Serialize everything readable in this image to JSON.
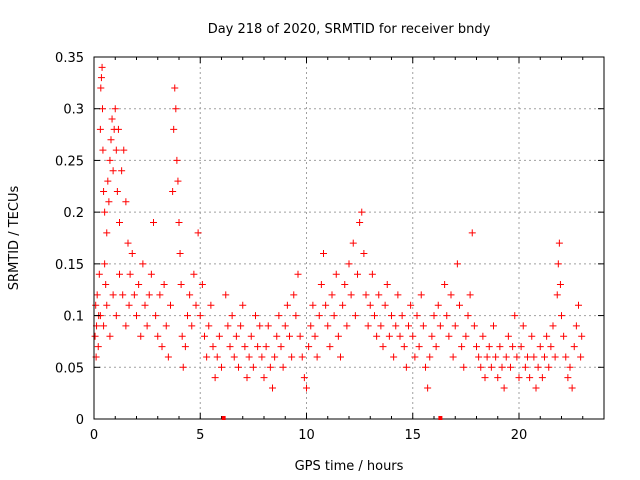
{
  "chart_data": {
    "type": "scatter",
    "title": "Day 218 of 2020, SRMTID for receiver bndy",
    "xlabel": "GPS time / hours",
    "ylabel": "SRMTID / TECUs",
    "xlim": [
      0,
      24
    ],
    "ylim": [
      0,
      0.35
    ],
    "xticks": [
      0,
      5,
      10,
      15,
      20
    ],
    "xtick_labels": [
      "0",
      "5",
      "10",
      "15",
      "20"
    ],
    "yticks": [
      0,
      0.05,
      0.1,
      0.15,
      0.2,
      0.25,
      0.3,
      0.35
    ],
    "ytick_labels": [
      "0",
      "0.05",
      "0.1",
      "0.15",
      "0.2",
      "0.25",
      "0.3",
      "0.35"
    ],
    "grid": true,
    "marker": "+",
    "color": "#ff0000",
    "baseline_markers": [
      6.1,
      16.3
    ],
    "series": [
      {
        "name": "SRMTID",
        "points": [
          [
            0.05,
            0.08
          ],
          [
            0.08,
            0.11
          ],
          [
            0.1,
            0.06
          ],
          [
            0.12,
            0.09
          ],
          [
            0.15,
            0.12
          ],
          [
            0.2,
            0.07
          ],
          [
            0.22,
            0.1
          ],
          [
            0.25,
            0.14
          ],
          [
            0.3,
            0.28
          ],
          [
            0.32,
            0.32
          ],
          [
            0.35,
            0.33
          ],
          [
            0.38,
            0.34
          ],
          [
            0.4,
            0.3
          ],
          [
            0.42,
            0.26
          ],
          [
            0.45,
            0.22
          ],
          [
            0.5,
            0.2
          ],
          [
            0.5,
            0.15
          ],
          [
            0.55,
            0.13
          ],
          [
            0.6,
            0.18
          ],
          [
            0.65,
            0.23
          ],
          [
            0.7,
            0.21
          ],
          [
            0.75,
            0.25
          ],
          [
            0.8,
            0.27
          ],
          [
            0.85,
            0.29
          ],
          [
            0.9,
            0.24
          ],
          [
            0.95,
            0.28
          ],
          [
            1.0,
            0.3
          ],
          [
            1.05,
            0.26
          ],
          [
            1.1,
            0.22
          ],
          [
            1.15,
            0.28
          ],
          [
            1.2,
            0.19
          ],
          [
            1.3,
            0.24
          ],
          [
            1.4,
            0.26
          ],
          [
            1.5,
            0.21
          ],
          [
            1.6,
            0.17
          ],
          [
            1.7,
            0.14
          ],
          [
            0.3,
            0.1
          ],
          [
            0.45,
            0.09
          ],
          [
            0.6,
            0.11
          ],
          [
            0.75,
            0.08
          ],
          [
            0.9,
            0.12
          ],
          [
            1.05,
            0.1
          ],
          [
            1.2,
            0.14
          ],
          [
            1.35,
            0.12
          ],
          [
            1.5,
            0.09
          ],
          [
            1.65,
            0.11
          ],
          [
            1.8,
            0.16
          ],
          [
            1.9,
            0.12
          ],
          [
            2.0,
            0.1
          ],
          [
            2.1,
            0.13
          ],
          [
            2.2,
            0.08
          ],
          [
            2.3,
            0.15
          ],
          [
            2.4,
            0.11
          ],
          [
            2.5,
            0.09
          ],
          [
            2.6,
            0.12
          ],
          [
            2.7,
            0.14
          ],
          [
            2.8,
            0.19
          ],
          [
            2.9,
            0.1
          ],
          [
            3.0,
            0.08
          ],
          [
            3.1,
            0.12
          ],
          [
            3.2,
            0.07
          ],
          [
            3.3,
            0.13
          ],
          [
            3.4,
            0.09
          ],
          [
            3.5,
            0.06
          ],
          [
            3.6,
            0.11
          ],
          [
            3.7,
            0.22
          ],
          [
            3.75,
            0.28
          ],
          [
            3.8,
            0.32
          ],
          [
            3.85,
            0.3
          ],
          [
            3.9,
            0.25
          ],
          [
            3.95,
            0.23
          ],
          [
            4.0,
            0.19
          ],
          [
            4.05,
            0.16
          ],
          [
            4.1,
            0.13
          ],
          [
            4.15,
            0.08
          ],
          [
            4.2,
            0.05
          ],
          [
            4.3,
            0.07
          ],
          [
            4.4,
            0.1
          ],
          [
            4.5,
            0.12
          ],
          [
            4.6,
            0.09
          ],
          [
            4.7,
            0.14
          ],
          [
            4.8,
            0.11
          ],
          [
            4.9,
            0.18
          ],
          [
            5.0,
            0.1
          ],
          [
            5.1,
            0.13
          ],
          [
            5.2,
            0.08
          ],
          [
            5.3,
            0.06
          ],
          [
            5.4,
            0.09
          ],
          [
            5.5,
            0.11
          ],
          [
            5.6,
            0.07
          ],
          [
            5.7,
            0.04
          ],
          [
            5.8,
            0.06
          ],
          [
            5.9,
            0.08
          ],
          [
            6.0,
            0.05
          ],
          [
            6.2,
            0.12
          ],
          [
            6.3,
            0.09
          ],
          [
            6.4,
            0.07
          ],
          [
            6.5,
            0.1
          ],
          [
            6.6,
            0.06
          ],
          [
            6.7,
            0.08
          ],
          [
            6.8,
            0.05
          ],
          [
            6.9,
            0.09
          ],
          [
            7.0,
            0.11
          ],
          [
            7.1,
            0.07
          ],
          [
            7.2,
            0.04
          ],
          [
            7.3,
            0.06
          ],
          [
            7.4,
            0.08
          ],
          [
            7.5,
            0.05
          ],
          [
            7.6,
            0.1
          ],
          [
            7.7,
            0.07
          ],
          [
            7.8,
            0.09
          ],
          [
            7.9,
            0.06
          ],
          [
            8.0,
            0.04
          ],
          [
            8.1,
            0.07
          ],
          [
            8.2,
            0.09
          ],
          [
            8.3,
            0.05
          ],
          [
            8.4,
            0.03
          ],
          [
            8.5,
            0.06
          ],
          [
            8.6,
            0.08
          ],
          [
            8.7,
            0.1
          ],
          [
            8.8,
            0.07
          ],
          [
            8.9,
            0.05
          ],
          [
            9.0,
            0.09
          ],
          [
            9.1,
            0.11
          ],
          [
            9.2,
            0.08
          ],
          [
            9.3,
            0.06
          ],
          [
            9.4,
            0.12
          ],
          [
            9.5,
            0.1
          ],
          [
            9.6,
            0.14
          ],
          [
            9.7,
            0.08
          ],
          [
            9.8,
            0.06
          ],
          [
            9.9,
            0.04
          ],
          [
            10.0,
            0.03
          ],
          [
            10.1,
            0.07
          ],
          [
            10.2,
            0.09
          ],
          [
            10.3,
            0.11
          ],
          [
            10.4,
            0.08
          ],
          [
            10.5,
            0.06
          ],
          [
            10.6,
            0.1
          ],
          [
            10.7,
            0.13
          ],
          [
            10.8,
            0.16
          ],
          [
            10.9,
            0.11
          ],
          [
            11.0,
            0.09
          ],
          [
            11.1,
            0.07
          ],
          [
            11.2,
            0.12
          ],
          [
            11.3,
            0.1
          ],
          [
            11.4,
            0.14
          ],
          [
            11.5,
            0.08
          ],
          [
            11.6,
            0.06
          ],
          [
            11.7,
            0.11
          ],
          [
            11.8,
            0.13
          ],
          [
            11.9,
            0.09
          ],
          [
            12.0,
            0.15
          ],
          [
            12.1,
            0.12
          ],
          [
            12.2,
            0.17
          ],
          [
            12.3,
            0.1
          ],
          [
            12.4,
            0.14
          ],
          [
            12.5,
            0.19
          ],
          [
            12.6,
            0.2
          ],
          [
            12.7,
            0.16
          ],
          [
            12.8,
            0.12
          ],
          [
            12.9,
            0.09
          ],
          [
            13.0,
            0.11
          ],
          [
            13.1,
            0.14
          ],
          [
            13.2,
            0.1
          ],
          [
            13.3,
            0.08
          ],
          [
            13.4,
            0.12
          ],
          [
            13.5,
            0.09
          ],
          [
            13.6,
            0.07
          ],
          [
            13.7,
            0.11
          ],
          [
            13.8,
            0.13
          ],
          [
            13.9,
            0.08
          ],
          [
            14.0,
            0.1
          ],
          [
            14.1,
            0.06
          ],
          [
            14.2,
            0.09
          ],
          [
            14.3,
            0.12
          ],
          [
            14.4,
            0.08
          ],
          [
            14.5,
            0.1
          ],
          [
            14.6,
            0.07
          ],
          [
            14.7,
            0.05
          ],
          [
            14.8,
            0.09
          ],
          [
            14.9,
            0.11
          ],
          [
            15.0,
            0.08
          ],
          [
            15.1,
            0.06
          ],
          [
            15.2,
            0.1
          ],
          [
            15.3,
            0.07
          ],
          [
            15.4,
            0.12
          ],
          [
            15.5,
            0.09
          ],
          [
            15.6,
            0.05
          ],
          [
            15.7,
            0.03
          ],
          [
            15.8,
            0.06
          ],
          [
            15.9,
            0.08
          ],
          [
            16.0,
            0.1
          ],
          [
            16.1,
            0.07
          ],
          [
            16.2,
            0.11
          ],
          [
            16.3,
            0.09
          ],
          [
            16.5,
            0.13
          ],
          [
            16.6,
            0.1
          ],
          [
            16.7,
            0.08
          ],
          [
            16.8,
            0.12
          ],
          [
            16.9,
            0.06
          ],
          [
            17.0,
            0.09
          ],
          [
            17.1,
            0.15
          ],
          [
            17.2,
            0.11
          ],
          [
            17.3,
            0.07
          ],
          [
            17.4,
            0.05
          ],
          [
            17.5,
            0.08
          ],
          [
            17.6,
            0.1
          ],
          [
            17.7,
            0.12
          ],
          [
            17.8,
            0.18
          ],
          [
            17.9,
            0.09
          ],
          [
            18.0,
            0.07
          ],
          [
            18.1,
            0.06
          ],
          [
            18.2,
            0.05
          ],
          [
            18.3,
            0.08
          ],
          [
            18.4,
            0.04
          ],
          [
            18.5,
            0.06
          ],
          [
            18.6,
            0.07
          ],
          [
            18.7,
            0.05
          ],
          [
            18.8,
            0.09
          ],
          [
            18.9,
            0.06
          ],
          [
            19.0,
            0.04
          ],
          [
            19.1,
            0.07
          ],
          [
            19.2,
            0.05
          ],
          [
            19.3,
            0.03
          ],
          [
            19.4,
            0.06
          ],
          [
            19.5,
            0.08
          ],
          [
            19.6,
            0.05
          ],
          [
            19.7,
            0.07
          ],
          [
            19.8,
            0.1
          ],
          [
            19.9,
            0.06
          ],
          [
            20.0,
            0.04
          ],
          [
            20.1,
            0.07
          ],
          [
            20.2,
            0.09
          ],
          [
            20.3,
            0.05
          ],
          [
            20.4,
            0.06
          ],
          [
            20.5,
            0.04
          ],
          [
            20.6,
            0.08
          ],
          [
            20.7,
            0.06
          ],
          [
            20.8,
            0.03
          ],
          [
            20.9,
            0.05
          ],
          [
            21.0,
            0.07
          ],
          [
            21.1,
            0.04
          ],
          [
            21.2,
            0.06
          ],
          [
            21.3,
            0.08
          ],
          [
            21.4,
            0.05
          ],
          [
            21.5,
            0.07
          ],
          [
            21.6,
            0.09
          ],
          [
            21.7,
            0.06
          ],
          [
            21.8,
            0.12
          ],
          [
            21.85,
            0.15
          ],
          [
            21.9,
            0.17
          ],
          [
            21.95,
            0.13
          ],
          [
            22.0,
            0.1
          ],
          [
            22.1,
            0.08
          ],
          [
            22.2,
            0.06
          ],
          [
            22.3,
            0.04
          ],
          [
            22.4,
            0.05
          ],
          [
            22.5,
            0.03
          ],
          [
            22.6,
            0.07
          ],
          [
            22.7,
            0.09
          ],
          [
            22.8,
            0.11
          ],
          [
            22.9,
            0.06
          ],
          [
            22.95,
            0.08
          ]
        ]
      }
    ]
  }
}
